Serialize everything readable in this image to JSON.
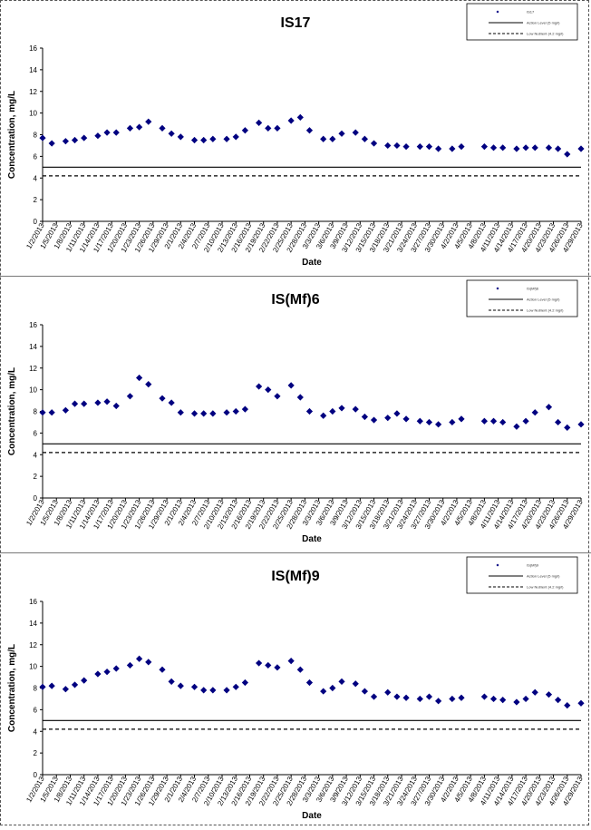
{
  "chart_data": [
    {
      "type": "scatter",
      "title": "IS17",
      "xlabel": "Date",
      "ylabel": "Concentration, mg/L",
      "ylim": [
        0,
        16
      ],
      "yticks": [
        "0",
        "2",
        "4",
        "6",
        "8",
        "10",
        "12",
        "14",
        "16"
      ],
      "x_ticks": [
        "1/2/2013",
        "1/5/2013",
        "1/8/2013",
        "1/11/2013",
        "1/14/2013",
        "1/17/2013",
        "1/20/2013",
        "1/23/2013",
        "1/26/2013",
        "1/29/2013",
        "2/1/2013",
        "2/4/2013",
        "2/7/2013",
        "2/10/2013",
        "2/13/2013",
        "2/16/2013",
        "2/19/2013",
        "2/22/2013",
        "2/25/2013",
        "2/28/2013",
        "3/3/2013",
        "3/6/2013",
        "3/9/2013",
        "3/12/2013",
        "3/15/2013",
        "3/18/2013",
        "3/21/2013",
        "3/24/2013",
        "3/27/2013",
        "3/30/2013",
        "4/2/2013",
        "4/5/2013",
        "4/8/2013",
        "4/11/2013",
        "4/14/2013",
        "4/17/2013",
        "4/20/2013",
        "4/23/2013",
        "4/26/2013",
        "4/29/2013"
      ],
      "legend_position": "top-right",
      "legend": [
        "IS17",
        "Action Level (5 mg/l)",
        "Low Nutrient (4.2 mg/l)"
      ],
      "reference_lines": [
        {
          "y": 5.0,
          "style": "solid"
        },
        {
          "y": 4.2,
          "style": "dashed"
        }
      ],
      "series": [
        {
          "name": "IS17",
          "color": "#000080",
          "x": [
            "2013-01-02",
            "2013-01-04",
            "2013-01-07",
            "2013-01-09",
            "2013-01-11",
            "2013-01-14",
            "2013-01-16",
            "2013-01-18",
            "2013-01-21",
            "2013-01-23",
            "2013-01-25",
            "2013-01-28",
            "2013-01-30",
            "2013-02-01",
            "2013-02-04",
            "2013-02-06",
            "2013-02-08",
            "2013-02-11",
            "2013-02-13",
            "2013-02-15",
            "2013-02-18",
            "2013-02-20",
            "2013-02-22",
            "2013-02-25",
            "2013-02-27",
            "2013-03-01",
            "2013-03-04",
            "2013-03-06",
            "2013-03-08",
            "2013-03-11",
            "2013-03-13",
            "2013-03-15",
            "2013-03-18",
            "2013-03-20",
            "2013-03-22",
            "2013-03-25",
            "2013-03-27",
            "2013-03-29",
            "2013-04-01",
            "2013-04-03",
            "2013-04-08",
            "2013-04-10",
            "2013-04-12",
            "2013-04-15",
            "2013-04-17",
            "2013-04-19",
            "2013-04-22",
            "2013-04-24",
            "2013-04-26",
            "2013-04-29"
          ],
          "y": [
            7.7,
            7.2,
            7.4,
            7.5,
            7.7,
            7.9,
            8.2,
            8.2,
            8.6,
            8.7,
            9.2,
            8.6,
            8.1,
            7.8,
            7.5,
            7.5,
            7.6,
            7.6,
            7.8,
            8.4,
            9.1,
            8.6,
            8.6,
            9.3,
            9.6,
            8.4,
            7.6,
            7.6,
            8.1,
            8.2,
            7.6,
            7.2,
            7.0,
            7.0,
            6.9,
            6.9,
            6.9,
            6.7,
            6.7,
            6.9,
            6.9,
            6.8,
            6.8,
            6.7,
            6.8,
            6.8,
            6.8,
            6.7,
            6.2,
            6.7
          ]
        }
      ]
    },
    {
      "type": "scatter",
      "title": "IS(Mf)6",
      "xlabel": "Date",
      "ylabel": "Concentration, mg/L",
      "ylim": [
        0,
        16
      ],
      "yticks": [
        "0",
        "2",
        "4",
        "6",
        "8",
        "10",
        "12",
        "14",
        "16"
      ],
      "x_ticks": [
        "1/2/2013",
        "1/5/2013",
        "1/8/2013",
        "1/11/2013",
        "1/14/2013",
        "1/17/2013",
        "1/20/2013",
        "1/23/2013",
        "1/26/2013",
        "1/29/2013",
        "2/1/2013",
        "2/4/2013",
        "2/7/2013",
        "2/10/2013",
        "2/13/2013",
        "2/16/2013",
        "2/19/2013",
        "2/22/2013",
        "2/25/2013",
        "2/28/2013",
        "3/3/2013",
        "3/6/2013",
        "3/9/2013",
        "3/12/2013",
        "3/15/2013",
        "3/18/2013",
        "3/21/2013",
        "3/24/2013",
        "3/27/2013",
        "3/30/2013",
        "4/2/2013",
        "4/5/2013",
        "4/8/2013",
        "4/11/2013",
        "4/14/2013",
        "4/17/2013",
        "4/20/2013",
        "4/23/2013",
        "4/26/2013",
        "4/29/2013"
      ],
      "legend_position": "top-right",
      "legend": [
        "IS(Mf)6",
        "Action Level (5 mg/l)",
        "Low Nutrient (4.2 mg/l)"
      ],
      "reference_lines": [
        {
          "y": 5.0,
          "style": "solid"
        },
        {
          "y": 4.2,
          "style": "dashed"
        }
      ],
      "series": [
        {
          "name": "IS(Mf)6",
          "color": "#000080",
          "x": [
            "2013-01-02",
            "2013-01-04",
            "2013-01-07",
            "2013-01-09",
            "2013-01-11",
            "2013-01-14",
            "2013-01-16",
            "2013-01-18",
            "2013-01-21",
            "2013-01-23",
            "2013-01-25",
            "2013-01-28",
            "2013-01-30",
            "2013-02-01",
            "2013-02-04",
            "2013-02-06",
            "2013-02-08",
            "2013-02-11",
            "2013-02-13",
            "2013-02-15",
            "2013-02-18",
            "2013-02-20",
            "2013-02-22",
            "2013-02-25",
            "2013-02-27",
            "2013-03-01",
            "2013-03-04",
            "2013-03-06",
            "2013-03-08",
            "2013-03-11",
            "2013-03-13",
            "2013-03-15",
            "2013-03-18",
            "2013-03-20",
            "2013-03-22",
            "2013-03-25",
            "2013-03-27",
            "2013-03-29",
            "2013-04-01",
            "2013-04-03",
            "2013-04-08",
            "2013-04-10",
            "2013-04-12",
            "2013-04-15",
            "2013-04-17",
            "2013-04-19",
            "2013-04-22",
            "2013-04-24",
            "2013-04-26",
            "2013-04-29"
          ],
          "y": [
            7.9,
            7.9,
            8.1,
            8.7,
            8.7,
            8.8,
            8.9,
            8.5,
            9.4,
            11.1,
            10.5,
            9.2,
            8.8,
            7.9,
            7.8,
            7.8,
            7.8,
            7.9,
            8.0,
            8.2,
            10.3,
            10.0,
            9.4,
            10.4,
            9.3,
            8.0,
            7.6,
            8.0,
            8.3,
            8.2,
            7.5,
            7.2,
            7.4,
            7.8,
            7.3,
            7.1,
            7.0,
            6.8,
            7.0,
            7.3,
            7.1,
            7.1,
            7.0,
            6.6,
            7.1,
            7.9,
            8.4,
            7.0,
            6.5,
            6.8
          ]
        }
      ]
    },
    {
      "type": "scatter",
      "title": "IS(Mf)9",
      "xlabel": "Date",
      "ylabel": "Concentration, mg/L",
      "ylim": [
        0,
        16
      ],
      "yticks": [
        "0",
        "2",
        "4",
        "6",
        "8",
        "10",
        "12",
        "14",
        "16"
      ],
      "x_ticks": [
        "1/2/2013",
        "1/5/2013",
        "1/8/2013",
        "1/11/2013",
        "1/14/2013",
        "1/17/2013",
        "1/20/2013",
        "1/23/2013",
        "1/26/2013",
        "1/29/2013",
        "2/1/2013",
        "2/4/2013",
        "2/7/2013",
        "2/10/2013",
        "2/13/2013",
        "2/16/2013",
        "2/19/2013",
        "2/22/2013",
        "2/25/2013",
        "2/28/2013",
        "3/3/2013",
        "3/6/2013",
        "3/9/2013",
        "3/12/2013",
        "3/15/2013",
        "3/18/2013",
        "3/21/2013",
        "3/24/2013",
        "3/27/2013",
        "3/30/2013",
        "4/2/2013",
        "4/5/2013",
        "4/8/2013",
        "4/11/2013",
        "4/14/2013",
        "4/17/2013",
        "4/20/2013",
        "4/23/2013",
        "4/26/2013",
        "4/29/2013"
      ],
      "legend_position": "top-right",
      "legend": [
        "IS(Mf)9",
        "Action Level (5 mg/l)",
        "Low Nutrient (4.2 mg/l)"
      ],
      "reference_lines": [
        {
          "y": 5.0,
          "style": "solid"
        },
        {
          "y": 4.2,
          "style": "dashed"
        }
      ],
      "series": [
        {
          "name": "IS(Mf)9",
          "color": "#000080",
          "x": [
            "2013-01-02",
            "2013-01-04",
            "2013-01-07",
            "2013-01-09",
            "2013-01-11",
            "2013-01-14",
            "2013-01-16",
            "2013-01-18",
            "2013-01-21",
            "2013-01-23",
            "2013-01-25",
            "2013-01-28",
            "2013-01-30",
            "2013-02-01",
            "2013-02-04",
            "2013-02-06",
            "2013-02-08",
            "2013-02-11",
            "2013-02-13",
            "2013-02-15",
            "2013-02-18",
            "2013-02-20",
            "2013-02-22",
            "2013-02-25",
            "2013-02-27",
            "2013-03-01",
            "2013-03-04",
            "2013-03-06",
            "2013-03-08",
            "2013-03-11",
            "2013-03-13",
            "2013-03-15",
            "2013-03-18",
            "2013-03-20",
            "2013-03-22",
            "2013-03-25",
            "2013-03-27",
            "2013-03-29",
            "2013-04-01",
            "2013-04-03",
            "2013-04-08",
            "2013-04-10",
            "2013-04-12",
            "2013-04-15",
            "2013-04-17",
            "2013-04-19",
            "2013-04-22",
            "2013-04-24",
            "2013-04-26",
            "2013-04-29"
          ],
          "y": [
            8.1,
            8.2,
            7.9,
            8.3,
            8.7,
            9.3,
            9.5,
            9.8,
            10.1,
            10.7,
            10.4,
            9.7,
            8.6,
            8.2,
            8.1,
            7.8,
            7.8,
            7.8,
            8.1,
            8.5,
            10.3,
            10.1,
            9.9,
            10.5,
            9.7,
            8.5,
            7.7,
            8.0,
            8.6,
            8.4,
            7.7,
            7.2,
            7.6,
            7.2,
            7.1,
            7.0,
            7.2,
            6.8,
            7.0,
            7.1,
            7.2,
            7.0,
            6.9,
            6.7,
            7.0,
            7.6,
            7.4,
            6.9,
            6.4,
            6.6
          ]
        }
      ]
    }
  ]
}
